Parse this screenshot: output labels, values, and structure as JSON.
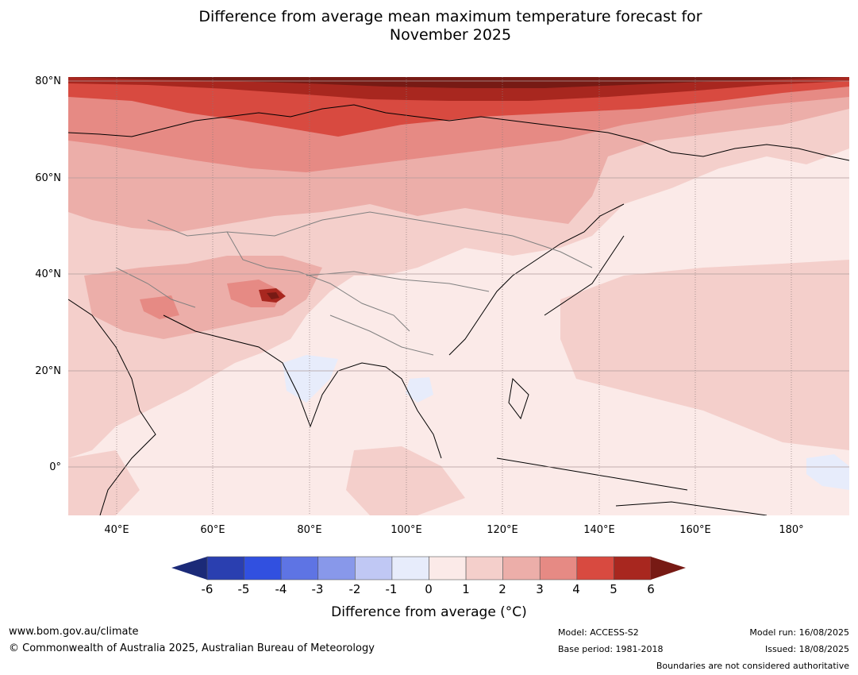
{
  "title_line1": "Difference from average mean maximum temperature forecast for",
  "title_line2": "November 2025",
  "latitude_labels": [
    "80°N",
    "60°N",
    "40°N",
    "20°N",
    "0°"
  ],
  "longitude_labels": [
    "40°E",
    "60°E",
    "80°E",
    "100°E",
    "120°E",
    "140°E",
    "160°E",
    "180°"
  ],
  "colorbar": {
    "title": "Difference from average (°C)",
    "ticks": [
      "-6",
      "-5",
      "-4",
      "-3",
      "-2",
      "-1",
      "0",
      "1",
      "2",
      "3",
      "4",
      "5",
      "6"
    ],
    "colors": [
      "#1b2a78",
      "#2a3fb0",
      "#3150e0",
      "#5e74e4",
      "#8898ea",
      "#c0c8f4",
      "#e7ecfb",
      "#fbeae8",
      "#f4cfcb",
      "#ecaea9",
      "#e68a84",
      "#d84a40",
      "#a8271f",
      "#771a14"
    ]
  },
  "footer": {
    "website": "www.bom.gov.au/climate",
    "copyright": "© Commonwealth of Australia 2025, Australian Bureau of Meteorology",
    "model": "Model: ACCESS-S2",
    "base_period": "Base period: 1981-2018",
    "model_run": "Model run: 16/08/2025",
    "issued": "Issued: 18/08/2025",
    "disclaimer": "Boundaries are not considered authoritative"
  }
}
